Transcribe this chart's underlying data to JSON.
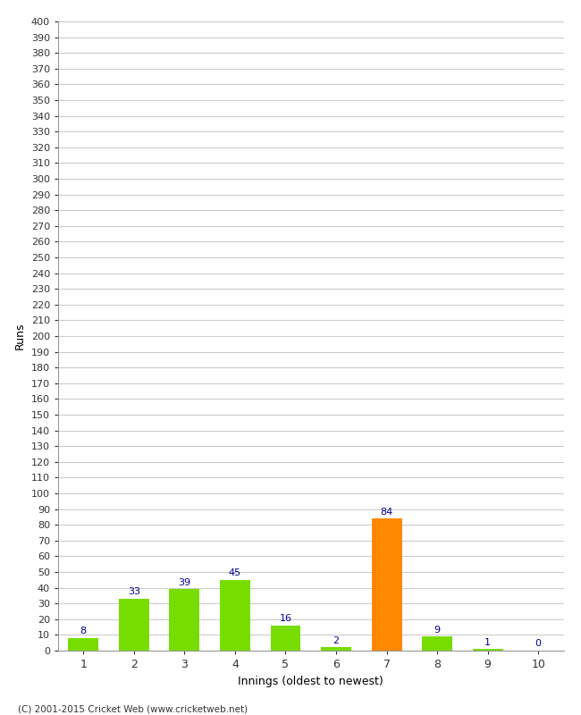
{
  "title": "",
  "xlabel": "Innings (oldest to newest)",
  "ylabel": "Runs",
  "categories": [
    "1",
    "2",
    "3",
    "4",
    "5",
    "6",
    "7",
    "8",
    "9",
    "10"
  ],
  "values": [
    8,
    33,
    39,
    45,
    16,
    2,
    84,
    9,
    1,
    0
  ],
  "bar_colors": [
    "#77dd00",
    "#77dd00",
    "#77dd00",
    "#77dd00",
    "#77dd00",
    "#77dd00",
    "#ff8800",
    "#77dd00",
    "#77dd00",
    "#77dd00"
  ],
  "label_color": "#000099",
  "ylim": [
    0,
    400
  ],
  "ytick_step": 10,
  "background_color": "#ffffff",
  "grid_color": "#cccccc",
  "footer": "(C) 2001-2015 Cricket Web (www.cricketweb.net)"
}
